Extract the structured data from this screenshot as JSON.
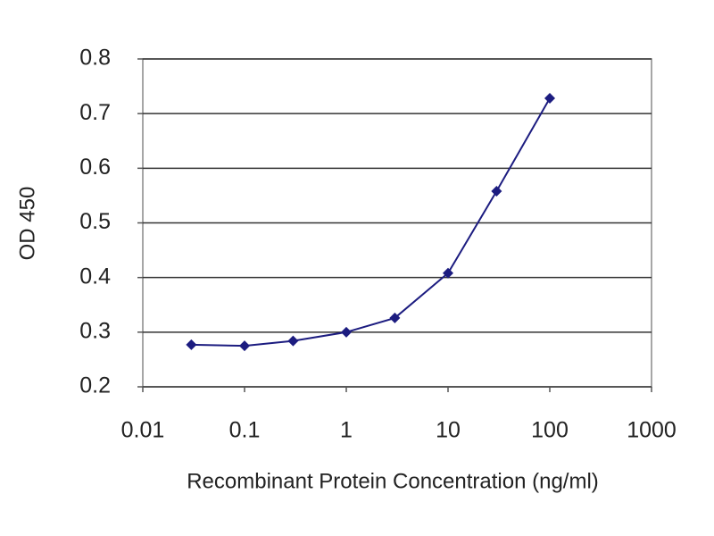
{
  "chart_data": {
    "type": "line",
    "xscale": "log",
    "x_label": "Recombinant Protein Concentration (ng/ml)",
    "y_label": "OD 450",
    "x": [
      0.03,
      0.1,
      0.3,
      1,
      3,
      10,
      30,
      100
    ],
    "series": [
      {
        "color": "#1c1c80",
        "values": [
          0.277,
          0.275,
          0.284,
          0.3,
          0.326,
          0.408,
          0.558,
          0.728
        ]
      }
    ],
    "xlim": [
      0.01,
      1000
    ],
    "xticks": [
      0.01,
      0.1,
      1,
      10,
      100,
      1000
    ],
    "ylim": [
      0.2,
      0.8
    ],
    "yticks": [
      0.2,
      0.3,
      0.4,
      0.5,
      0.6,
      0.7,
      0.8
    ],
    "grid": true
  }
}
